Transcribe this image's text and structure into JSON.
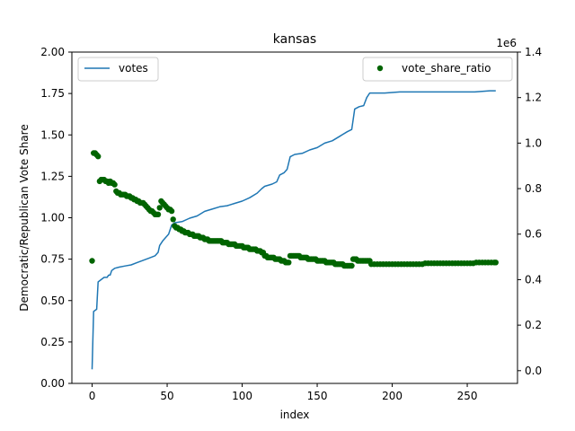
{
  "chart_data": {
    "type": "line+scatter",
    "title": "kansas",
    "xlabel": "index",
    "ylabel": "Democratic/Republican Vote Share",
    "xlim": [
      -13.5,
      283.5
    ],
    "x_ticks": [
      0,
      50,
      100,
      150,
      200,
      250
    ],
    "left_ylim": [
      0,
      2.0
    ],
    "left_y_ticks": [
      "0.00",
      "0.25",
      "0.50",
      "0.75",
      "1.00",
      "1.25",
      "1.50",
      "1.75",
      "2.00"
    ],
    "right_ylim": [
      -0.056,
      1.4
    ],
    "right_y_ticks": [
      "0.0",
      "0.2",
      "0.4",
      "0.6",
      "0.8",
      "1.0",
      "1.2",
      "1.4"
    ],
    "right_axis_multiplier": "1e6",
    "grid": false,
    "series": [
      {
        "name": "votes",
        "kind": "line",
        "axis": "right",
        "color": "#1f77b4",
        "points": [
          [
            0,
            0.006
          ],
          [
            1,
            0.26
          ],
          [
            3,
            0.27
          ],
          [
            4,
            0.39
          ],
          [
            6,
            0.4
          ],
          [
            8,
            0.41
          ],
          [
            10,
            0.41
          ],
          [
            11,
            0.42
          ],
          [
            12,
            0.42
          ],
          [
            13,
            0.44
          ],
          [
            15,
            0.45
          ],
          [
            18,
            0.455
          ],
          [
            22,
            0.46
          ],
          [
            26,
            0.465
          ],
          [
            30,
            0.475
          ],
          [
            34,
            0.485
          ],
          [
            38,
            0.495
          ],
          [
            42,
            0.505
          ],
          [
            44,
            0.52
          ],
          [
            45,
            0.55
          ],
          [
            47,
            0.57
          ],
          [
            49,
            0.585
          ],
          [
            51,
            0.6
          ],
          [
            53,
            0.64
          ],
          [
            55,
            0.65
          ],
          [
            60,
            0.655
          ],
          [
            65,
            0.67
          ],
          [
            70,
            0.68
          ],
          [
            75,
            0.7
          ],
          [
            80,
            0.71
          ],
          [
            85,
            0.72
          ],
          [
            90,
            0.725
          ],
          [
            95,
            0.735
          ],
          [
            100,
            0.745
          ],
          [
            105,
            0.76
          ],
          [
            110,
            0.78
          ],
          [
            113,
            0.8
          ],
          [
            115,
            0.81
          ],
          [
            120,
            0.82
          ],
          [
            123,
            0.83
          ],
          [
            125,
            0.86
          ],
          [
            128,
            0.87
          ],
          [
            130,
            0.885
          ],
          [
            132,
            0.94
          ],
          [
            135,
            0.95
          ],
          [
            140,
            0.955
          ],
          [
            145,
            0.97
          ],
          [
            150,
            0.98
          ],
          [
            155,
            1.0
          ],
          [
            160,
            1.01
          ],
          [
            165,
            1.03
          ],
          [
            170,
            1.05
          ],
          [
            173,
            1.06
          ],
          [
            175,
            1.15
          ],
          [
            178,
            1.16
          ],
          [
            181,
            1.165
          ],
          [
            183,
            1.2
          ],
          [
            185,
            1.22
          ],
          [
            195,
            1.22
          ],
          [
            205,
            1.225
          ],
          [
            215,
            1.225
          ],
          [
            225,
            1.225
          ],
          [
            235,
            1.225
          ],
          [
            245,
            1.225
          ],
          [
            255,
            1.225
          ],
          [
            265,
            1.23
          ],
          [
            269,
            1.23
          ]
        ]
      },
      {
        "name": "vote_share_ratio",
        "kind": "scatter",
        "axis": "left",
        "color": "#006400",
        "points": [
          [
            0,
            0.74
          ],
          [
            1,
            1.39
          ],
          [
            2,
            1.39
          ],
          [
            3,
            1.38
          ],
          [
            4,
            1.37
          ],
          [
            5,
            1.22
          ],
          [
            6,
            1.23
          ],
          [
            7,
            1.23
          ],
          [
            8,
            1.23
          ],
          [
            9,
            1.22
          ],
          [
            10,
            1.22
          ],
          [
            11,
            1.21
          ],
          [
            12,
            1.22
          ],
          [
            13,
            1.21
          ],
          [
            14,
            1.21
          ],
          [
            15,
            1.2
          ],
          [
            16,
            1.16
          ],
          [
            17,
            1.15
          ],
          [
            18,
            1.15
          ],
          [
            19,
            1.14
          ],
          [
            20,
            1.14
          ],
          [
            21,
            1.14
          ],
          [
            22,
            1.14
          ],
          [
            23,
            1.13
          ],
          [
            24,
            1.13
          ],
          [
            25,
            1.13
          ],
          [
            26,
            1.12
          ],
          [
            27,
            1.12
          ],
          [
            28,
            1.11
          ],
          [
            29,
            1.11
          ],
          [
            30,
            1.1
          ],
          [
            31,
            1.1
          ],
          [
            32,
            1.09
          ],
          [
            33,
            1.09
          ],
          [
            34,
            1.09
          ],
          [
            35,
            1.08
          ],
          [
            36,
            1.07
          ],
          [
            37,
            1.06
          ],
          [
            38,
            1.05
          ],
          [
            39,
            1.04
          ],
          [
            40,
            1.04
          ],
          [
            41,
            1.03
          ],
          [
            42,
            1.02
          ],
          [
            43,
            1.02
          ],
          [
            44,
            1.02
          ],
          [
            45,
            1.06
          ],
          [
            46,
            1.1
          ],
          [
            47,
            1.09
          ],
          [
            48,
            1.08
          ],
          [
            49,
            1.07
          ],
          [
            50,
            1.06
          ],
          [
            51,
            1.05
          ],
          [
            52,
            1.05
          ],
          [
            53,
            1.04
          ],
          [
            54,
            0.99
          ],
          [
            55,
            0.95
          ],
          [
            56,
            0.94
          ],
          [
            57,
            0.94
          ],
          [
            58,
            0.93
          ],
          [
            59,
            0.93
          ],
          [
            60,
            0.92
          ],
          [
            61,
            0.92
          ],
          [
            62,
            0.91
          ],
          [
            63,
            0.91
          ],
          [
            64,
            0.91
          ],
          [
            65,
            0.9
          ],
          [
            66,
            0.9
          ],
          [
            67,
            0.9
          ],
          [
            68,
            0.89
          ],
          [
            69,
            0.89
          ],
          [
            70,
            0.89
          ],
          [
            71,
            0.89
          ],
          [
            72,
            0.88
          ],
          [
            73,
            0.88
          ],
          [
            74,
            0.88
          ],
          [
            75,
            0.87
          ],
          [
            76,
            0.87
          ],
          [
            77,
            0.87
          ],
          [
            78,
            0.86
          ],
          [
            79,
            0.86
          ],
          [
            80,
            0.86
          ],
          [
            81,
            0.86
          ],
          [
            82,
            0.86
          ],
          [
            83,
            0.86
          ],
          [
            84,
            0.86
          ],
          [
            85,
            0.86
          ],
          [
            86,
            0.86
          ],
          [
            87,
            0.85
          ],
          [
            88,
            0.85
          ],
          [
            89,
            0.85
          ],
          [
            90,
            0.85
          ],
          [
            91,
            0.84
          ],
          [
            92,
            0.84
          ],
          [
            93,
            0.84
          ],
          [
            94,
            0.84
          ],
          [
            95,
            0.84
          ],
          [
            96,
            0.83
          ],
          [
            97,
            0.83
          ],
          [
            98,
            0.83
          ],
          [
            99,
            0.83
          ],
          [
            100,
            0.83
          ],
          [
            101,
            0.82
          ],
          [
            102,
            0.82
          ],
          [
            103,
            0.82
          ],
          [
            104,
            0.82
          ],
          [
            105,
            0.81
          ],
          [
            106,
            0.81
          ],
          [
            107,
            0.81
          ],
          [
            108,
            0.81
          ],
          [
            109,
            0.81
          ],
          [
            110,
            0.8
          ],
          [
            111,
            0.8
          ],
          [
            112,
            0.8
          ],
          [
            113,
            0.79
          ],
          [
            114,
            0.79
          ],
          [
            115,
            0.77
          ],
          [
            116,
            0.77
          ],
          [
            117,
            0.76
          ],
          [
            118,
            0.76
          ],
          [
            119,
            0.76
          ],
          [
            120,
            0.76
          ],
          [
            121,
            0.76
          ],
          [
            122,
            0.75
          ],
          [
            123,
            0.75
          ],
          [
            124,
            0.75
          ],
          [
            125,
            0.75
          ],
          [
            126,
            0.74
          ],
          [
            127,
            0.74
          ],
          [
            128,
            0.74
          ],
          [
            129,
            0.73
          ],
          [
            130,
            0.73
          ],
          [
            131,
            0.73
          ],
          [
            132,
            0.77
          ],
          [
            133,
            0.77
          ],
          [
            134,
            0.77
          ],
          [
            135,
            0.77
          ],
          [
            136,
            0.77
          ],
          [
            137,
            0.77
          ],
          [
            138,
            0.77
          ],
          [
            139,
            0.76
          ],
          [
            140,
            0.76
          ],
          [
            141,
            0.76
          ],
          [
            142,
            0.76
          ],
          [
            143,
            0.76
          ],
          [
            144,
            0.75
          ],
          [
            145,
            0.75
          ],
          [
            146,
            0.75
          ],
          [
            147,
            0.75
          ],
          [
            148,
            0.75
          ],
          [
            149,
            0.75
          ],
          [
            150,
            0.74
          ],
          [
            151,
            0.74
          ],
          [
            152,
            0.74
          ],
          [
            153,
            0.74
          ],
          [
            154,
            0.74
          ],
          [
            155,
            0.74
          ],
          [
            156,
            0.73
          ],
          [
            157,
            0.73
          ],
          [
            158,
            0.73
          ],
          [
            159,
            0.73
          ],
          [
            160,
            0.73
          ],
          [
            161,
            0.73
          ],
          [
            162,
            0.72
          ],
          [
            163,
            0.72
          ],
          [
            164,
            0.72
          ],
          [
            165,
            0.72
          ],
          [
            166,
            0.72
          ],
          [
            167,
            0.72
          ],
          [
            168,
            0.71
          ],
          [
            169,
            0.71
          ],
          [
            170,
            0.71
          ],
          [
            171,
            0.71
          ],
          [
            172,
            0.71
          ],
          [
            173,
            0.71
          ],
          [
            174,
            0.75
          ],
          [
            175,
            0.75
          ],
          [
            176,
            0.75
          ],
          [
            177,
            0.74
          ],
          [
            178,
            0.74
          ],
          [
            179,
            0.74
          ],
          [
            180,
            0.74
          ],
          [
            181,
            0.74
          ],
          [
            182,
            0.74
          ],
          [
            183,
            0.74
          ],
          [
            184,
            0.74
          ],
          [
            185,
            0.74
          ],
          [
            186,
            0.72
          ],
          [
            188,
            0.72
          ],
          [
            190,
            0.72
          ],
          [
            192,
            0.72
          ],
          [
            194,
            0.72
          ],
          [
            196,
            0.72
          ],
          [
            198,
            0.72
          ],
          [
            200,
            0.72
          ],
          [
            202,
            0.72
          ],
          [
            204,
            0.72
          ],
          [
            206,
            0.72
          ],
          [
            208,
            0.72
          ],
          [
            210,
            0.72
          ],
          [
            212,
            0.72
          ],
          [
            214,
            0.72
          ],
          [
            216,
            0.72
          ],
          [
            218,
            0.72
          ],
          [
            220,
            0.72
          ],
          [
            222,
            0.725
          ],
          [
            224,
            0.725
          ],
          [
            226,
            0.725
          ],
          [
            228,
            0.725
          ],
          [
            230,
            0.725
          ],
          [
            232,
            0.725
          ],
          [
            234,
            0.725
          ],
          [
            236,
            0.725
          ],
          [
            238,
            0.725
          ],
          [
            240,
            0.725
          ],
          [
            242,
            0.725
          ],
          [
            244,
            0.725
          ],
          [
            246,
            0.725
          ],
          [
            248,
            0.725
          ],
          [
            250,
            0.725
          ],
          [
            252,
            0.725
          ],
          [
            254,
            0.725
          ],
          [
            256,
            0.73
          ],
          [
            258,
            0.73
          ],
          [
            260,
            0.73
          ],
          [
            262,
            0.73
          ],
          [
            264,
            0.73
          ],
          [
            266,
            0.73
          ],
          [
            268,
            0.73
          ],
          [
            269,
            0.73
          ]
        ]
      }
    ],
    "legends": [
      {
        "placement": "top-left",
        "entry": "votes"
      },
      {
        "placement": "top-right",
        "entry": "vote_share_ratio"
      }
    ]
  }
}
